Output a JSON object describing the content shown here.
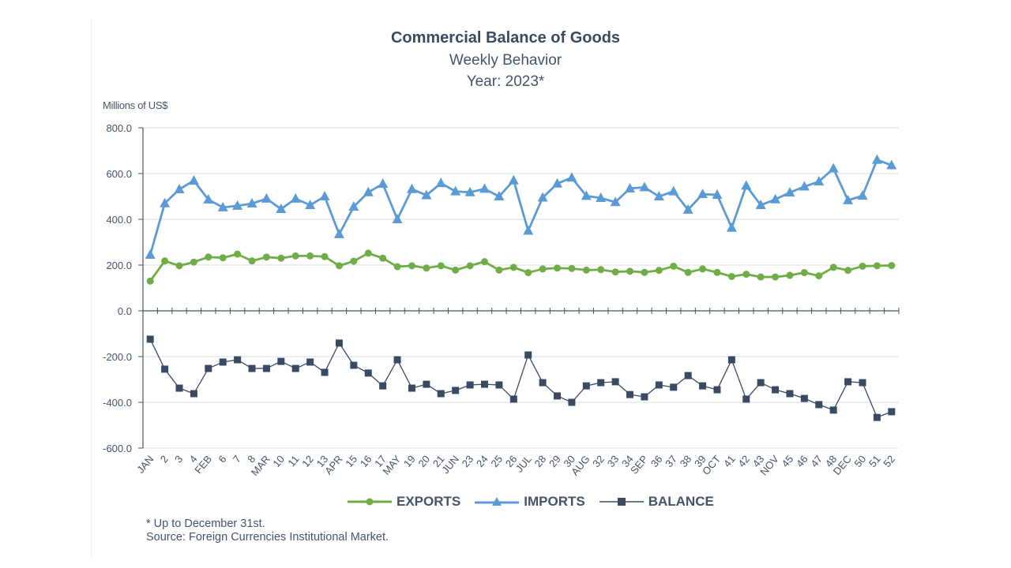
{
  "chart_data": {
    "type": "line",
    "title": "Commercial Balance of Goods",
    "subtitle": "Weekly Behavior",
    "year_label": "Year: 2023*",
    "ylabel": "Millions of US$",
    "xlabel": "",
    "ylim": [
      -600,
      800
    ],
    "yticks": [
      800,
      600,
      400,
      200,
      0,
      -200,
      -400,
      -600
    ],
    "ytick_labels": [
      "800.0",
      "600.0",
      "400.0",
      "200.0",
      "0.0",
      "-200.0",
      "-400.0",
      "-600.0"
    ],
    "grid": true,
    "legend_position": "bottom-center",
    "categories": [
      "JAN",
      "2",
      "3",
      "4",
      "FEB",
      "6",
      "7",
      "8",
      "MAR",
      "10",
      "11",
      "12",
      "13",
      "APR",
      "15",
      "16",
      "17",
      "MAY",
      "19",
      "20",
      "21",
      "JUN",
      "23",
      "24",
      "25",
      "26",
      "JUL",
      "28",
      "29",
      "30",
      "AUG",
      "32",
      "33",
      "34",
      "SEP",
      "36",
      "37",
      "38",
      "39",
      "OCT",
      "41",
      "42",
      "43",
      "NOV",
      "45",
      "46",
      "47",
      "48",
      "DEC",
      "50",
      "51",
      "52"
    ],
    "series": [
      {
        "name": "EXPORTS",
        "color": "#70ad47",
        "marker": "circle",
        "values": [
          130,
          218,
          197,
          213,
          235,
          232,
          248,
          218,
          235,
          230,
          240,
          240,
          237,
          197,
          217,
          252,
          230,
          193,
          197,
          187,
          197,
          178,
          197,
          215,
          178,
          190,
          167,
          183,
          187,
          185,
          178,
          180,
          170,
          173,
          168,
          177,
          195,
          168,
          183,
          168,
          150,
          160,
          148,
          148,
          155,
          167,
          153,
          190,
          177,
          195,
          197,
          198
        ]
      },
      {
        "name": "IMPORTS",
        "color": "#5b9bd5",
        "marker": "triangle",
        "values": [
          245,
          470,
          531,
          569,
          486,
          452,
          459,
          469,
          490,
          445,
          490,
          462,
          500,
          335,
          455,
          518,
          555,
          400,
          532,
          505,
          558,
          522,
          518,
          533,
          500,
          570,
          350,
          495,
          556,
          582,
          502,
          493,
          475,
          535,
          540,
          500,
          522,
          442,
          510,
          507,
          363,
          547,
          462,
          487,
          517,
          543,
          565,
          622,
          483,
          503,
          660,
          636
        ]
      },
      {
        "name": "BALANCE",
        "color": "#3a4a63",
        "marker": "square",
        "values": [
          -124,
          -255,
          -338,
          -362,
          -252,
          -224,
          -214,
          -252,
          -252,
          -221,
          -252,
          -224,
          -269,
          -141,
          -238,
          -272,
          -328,
          -214,
          -338,
          -321,
          -362,
          -348,
          -324,
          -321,
          -324,
          -386,
          -193,
          -314,
          -372,
          -400,
          -328,
          -314,
          -310,
          -366,
          -376,
          -324,
          -334,
          -283,
          -328,
          -345,
          -214,
          -386,
          -314,
          -345,
          -362,
          -383,
          -410,
          -434,
          -310,
          -314,
          -466,
          -441
        ]
      }
    ]
  },
  "footnotes": {
    "note": "* Up to December 31st.",
    "source": "Source: Foreign Currencies Institutional Market."
  }
}
